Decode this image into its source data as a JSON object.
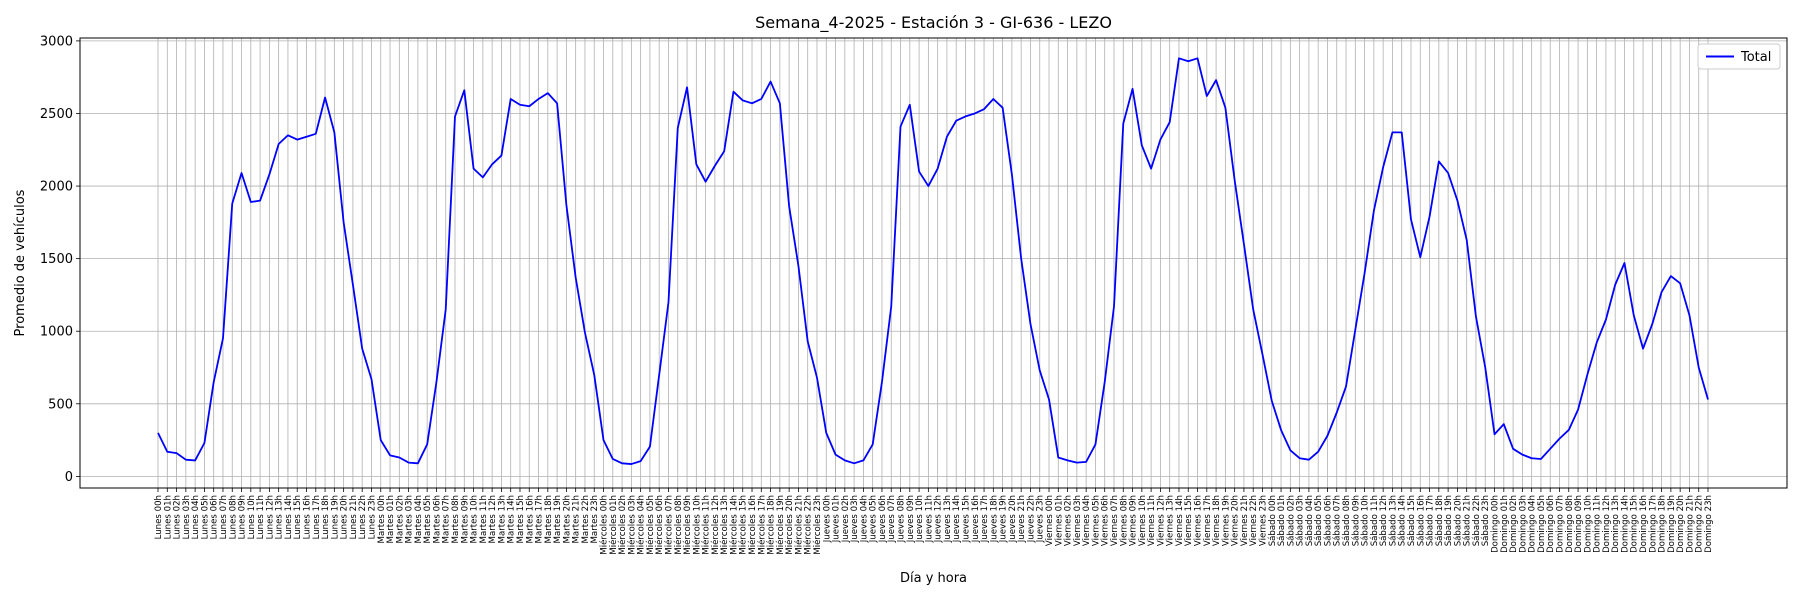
{
  "chart_data": {
    "type": "line",
    "title": "Semana_4-2025 - Estación 3 - GI-636  - LEZO",
    "xlabel": "Día y hora",
    "ylabel": "Promedio de vehículos",
    "ylim": [
      -80,
      3020
    ],
    "yticks": [
      0,
      500,
      1000,
      1500,
      2000,
      2500,
      3000
    ],
    "grid": true,
    "legend_position": "top-right",
    "categories": [
      "Lunes 00h",
      "Lunes 01h",
      "Lunes 02h",
      "Lunes 03h",
      "Lunes 04h",
      "Lunes 05h",
      "Lunes 06h",
      "Lunes 07h",
      "Lunes 08h",
      "Lunes 09h",
      "Lunes 10h",
      "Lunes 11h",
      "Lunes 12h",
      "Lunes 13h",
      "Lunes 14h",
      "Lunes 15h",
      "Lunes 16h",
      "Lunes 17h",
      "Lunes 18h",
      "Lunes 19h",
      "Lunes 20h",
      "Lunes 21h",
      "Lunes 22h",
      "Lunes 23h",
      "Martes 00h",
      "Martes 01h",
      "Martes 02h",
      "Martes 03h",
      "Martes 04h",
      "Martes 05h",
      "Martes 06h",
      "Martes 07h",
      "Martes 08h",
      "Martes 09h",
      "Martes 10h",
      "Martes 11h",
      "Martes 12h",
      "Martes 13h",
      "Martes 14h",
      "Martes 15h",
      "Martes 16h",
      "Martes 17h",
      "Martes 18h",
      "Martes 19h",
      "Martes 20h",
      "Martes 21h",
      "Martes 22h",
      "Martes 23h",
      "Miércoles 00h",
      "Miércoles 01h",
      "Miércoles 02h",
      "Miércoles 03h",
      "Miércoles 04h",
      "Miércoles 05h",
      "Miércoles 06h",
      "Miércoles 07h",
      "Miércoles 08h",
      "Miércoles 09h",
      "Miércoles 10h",
      "Miércoles 11h",
      "Miércoles 12h",
      "Miércoles 13h",
      "Miércoles 14h",
      "Miércoles 15h",
      "Miércoles 16h",
      "Miércoles 17h",
      "Miércoles 18h",
      "Miércoles 19h",
      "Miércoles 20h",
      "Miércoles 21h",
      "Miércoles 22h",
      "Miércoles 23h",
      "Jueves 00h",
      "Jueves 01h",
      "Jueves 02h",
      "Jueves 03h",
      "Jueves 04h",
      "Jueves 05h",
      "Jueves 06h",
      "Jueves 07h",
      "Jueves 08h",
      "Jueves 09h",
      "Jueves 10h",
      "Jueves 11h",
      "Jueves 12h",
      "Jueves 13h",
      "Jueves 14h",
      "Jueves 15h",
      "Jueves 16h",
      "Jueves 17h",
      "Jueves 18h",
      "Jueves 19h",
      "Jueves 20h",
      "Jueves 21h",
      "Jueves 22h",
      "Jueves 23h",
      "Viernes 00h",
      "Viernes 01h",
      "Viernes 02h",
      "Viernes 03h",
      "Viernes 04h",
      "Viernes 05h",
      "Viernes 06h",
      "Viernes 07h",
      "Viernes 08h",
      "Viernes 09h",
      "Viernes 10h",
      "Viernes 11h",
      "Viernes 12h",
      "Viernes 13h",
      "Viernes 14h",
      "Viernes 15h",
      "Viernes 16h",
      "Viernes 17h",
      "Viernes 18h",
      "Viernes 19h",
      "Viernes 20h",
      "Viernes 21h",
      "Viernes 22h",
      "Viernes 23h",
      "Sábado 00h",
      "Sábado 01h",
      "Sábado 02h",
      "Sábado 03h",
      "Sábado 04h",
      "Sábado 05h",
      "Sábado 06h",
      "Sábado 07h",
      "Sábado 08h",
      "Sábado 09h",
      "Sábado 10h",
      "Sábado 11h",
      "Sábado 12h",
      "Sábado 13h",
      "Sábado 14h",
      "Sábado 15h",
      "Sábado 16h",
      "Sábado 17h",
      "Sábado 18h",
      "Sábado 19h",
      "Sábado 20h",
      "Sábado 21h",
      "Sábado 22h",
      "Sábado 23h",
      "Domingo 00h",
      "Domingo 01h",
      "Domingo 02h",
      "Domingo 03h",
      "Domingo 04h",
      "Domingo 05h",
      "Domingo 06h",
      "Domingo 07h",
      "Domingo 08h",
      "Domingo 09h",
      "Domingo 10h",
      "Domingo 11h",
      "Domingo 12h",
      "Domingo 13h",
      "Domingo 14h",
      "Domingo 15h",
      "Domingo 16h",
      "Domingo 17h",
      "Domingo 18h",
      "Domingo 19h",
      "Domingo 20h",
      "Domingo 21h",
      "Domingo 22h",
      "Domingo 23h"
    ],
    "series": [
      {
        "name": "Total",
        "color": "#0000ff",
        "values": [
          300,
          170,
          160,
          115,
          110,
          230,
          650,
          950,
          1880,
          2090,
          1890,
          1900,
          2080,
          2290,
          2350,
          2320,
          2340,
          2360,
          2610,
          2370,
          1750,
          1320,
          880,
          670,
          250,
          145,
          130,
          95,
          90,
          220,
          650,
          1150,
          2480,
          2660,
          2120,
          2060,
          2150,
          2210,
          2600,
          2560,
          2550,
          2600,
          2640,
          2570,
          1870,
          1370,
          990,
          700,
          250,
          120,
          90,
          85,
          105,
          205,
          700,
          1200,
          2400,
          2680,
          2150,
          2030,
          2140,
          2240,
          2650,
          2590,
          2570,
          2600,
          2720,
          2570,
          1860,
          1450,
          930,
          680,
          300,
          150,
          110,
          90,
          110,
          220,
          650,
          1170,
          2410,
          2560,
          2100,
          2000,
          2120,
          2340,
          2450,
          2480,
          2500,
          2530,
          2600,
          2540,
          2080,
          1500,
          1050,
          730,
          530,
          130,
          110,
          95,
          100,
          220,
          650,
          1170,
          2430,
          2670,
          2280,
          2120,
          2320,
          2440,
          2880,
          2860,
          2880,
          2620,
          2730,
          2540,
          2040,
          1600,
          1150,
          840,
          520,
          320,
          180,
          125,
          115,
          170,
          280,
          440,
          620,
          1010,
          1400,
          1830,
          2130,
          2370,
          2370,
          1770,
          1510,
          1790,
          2170,
          2090,
          1900,
          1630,
          1100,
          750,
          290,
          360,
          190,
          150,
          125,
          120,
          190,
          260,
          320,
          460,
          700,
          920,
          1080,
          1320,
          1470,
          1110,
          880,
          1050,
          1270,
          1380,
          1330,
          1110,
          750,
          530
        ]
      }
    ]
  }
}
